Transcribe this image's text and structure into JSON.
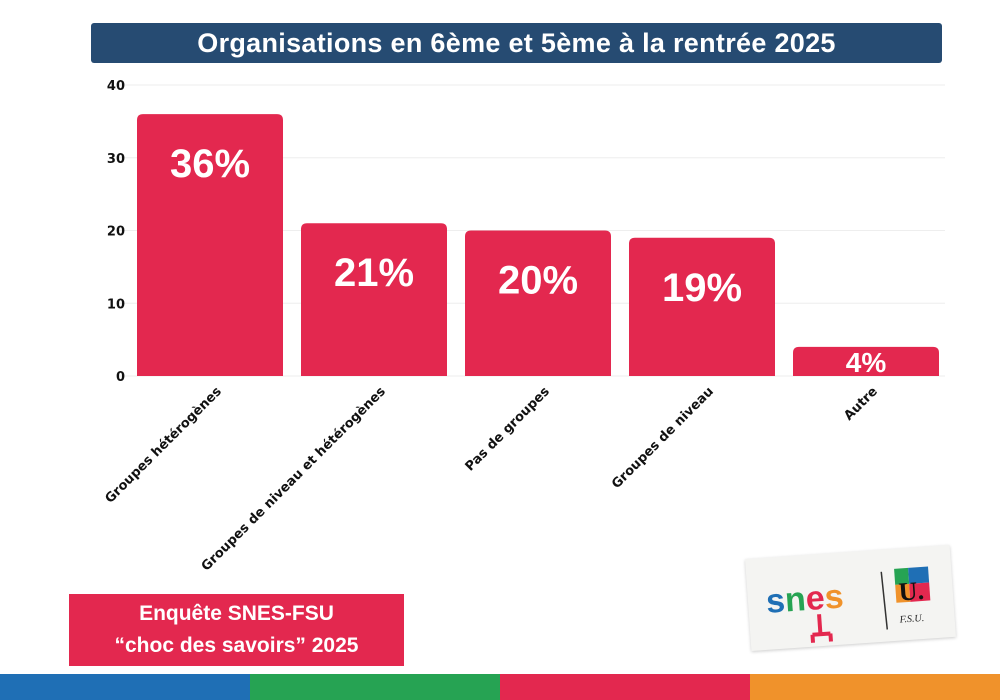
{
  "chart_data": {
    "type": "bar",
    "title": "Organisations en 6ème et 5ème à la rentrée 2025",
    "categories": [
      "Groupes hétérogènes",
      "Groupes de niveau et hétérogènes",
      "Pas de groupes",
      "Groupes de niveau",
      "Autre"
    ],
    "values": [
      36,
      21,
      20,
      19,
      4
    ],
    "data_labels": [
      "36%",
      "21%",
      "20%",
      "19%",
      "4%"
    ],
    "xlabel": "",
    "ylabel": "",
    "ylim": [
      0,
      40
    ],
    "yticks": [
      "0",
      "10",
      "20",
      "30",
      "40"
    ],
    "grid": true,
    "bar_color": "#e3284f"
  },
  "footer": {
    "line1": "Enquête SNES-FSU",
    "line2": "“choc des savoirs” 2025"
  },
  "logo": {
    "snes": "snes",
    "fsu": "F.S.U.",
    "u": "U."
  },
  "colors": {
    "title_bg": "#264b72",
    "stripe": [
      "#1f6fb5",
      "#26a353",
      "#e3284f",
      "#f0922b"
    ]
  }
}
